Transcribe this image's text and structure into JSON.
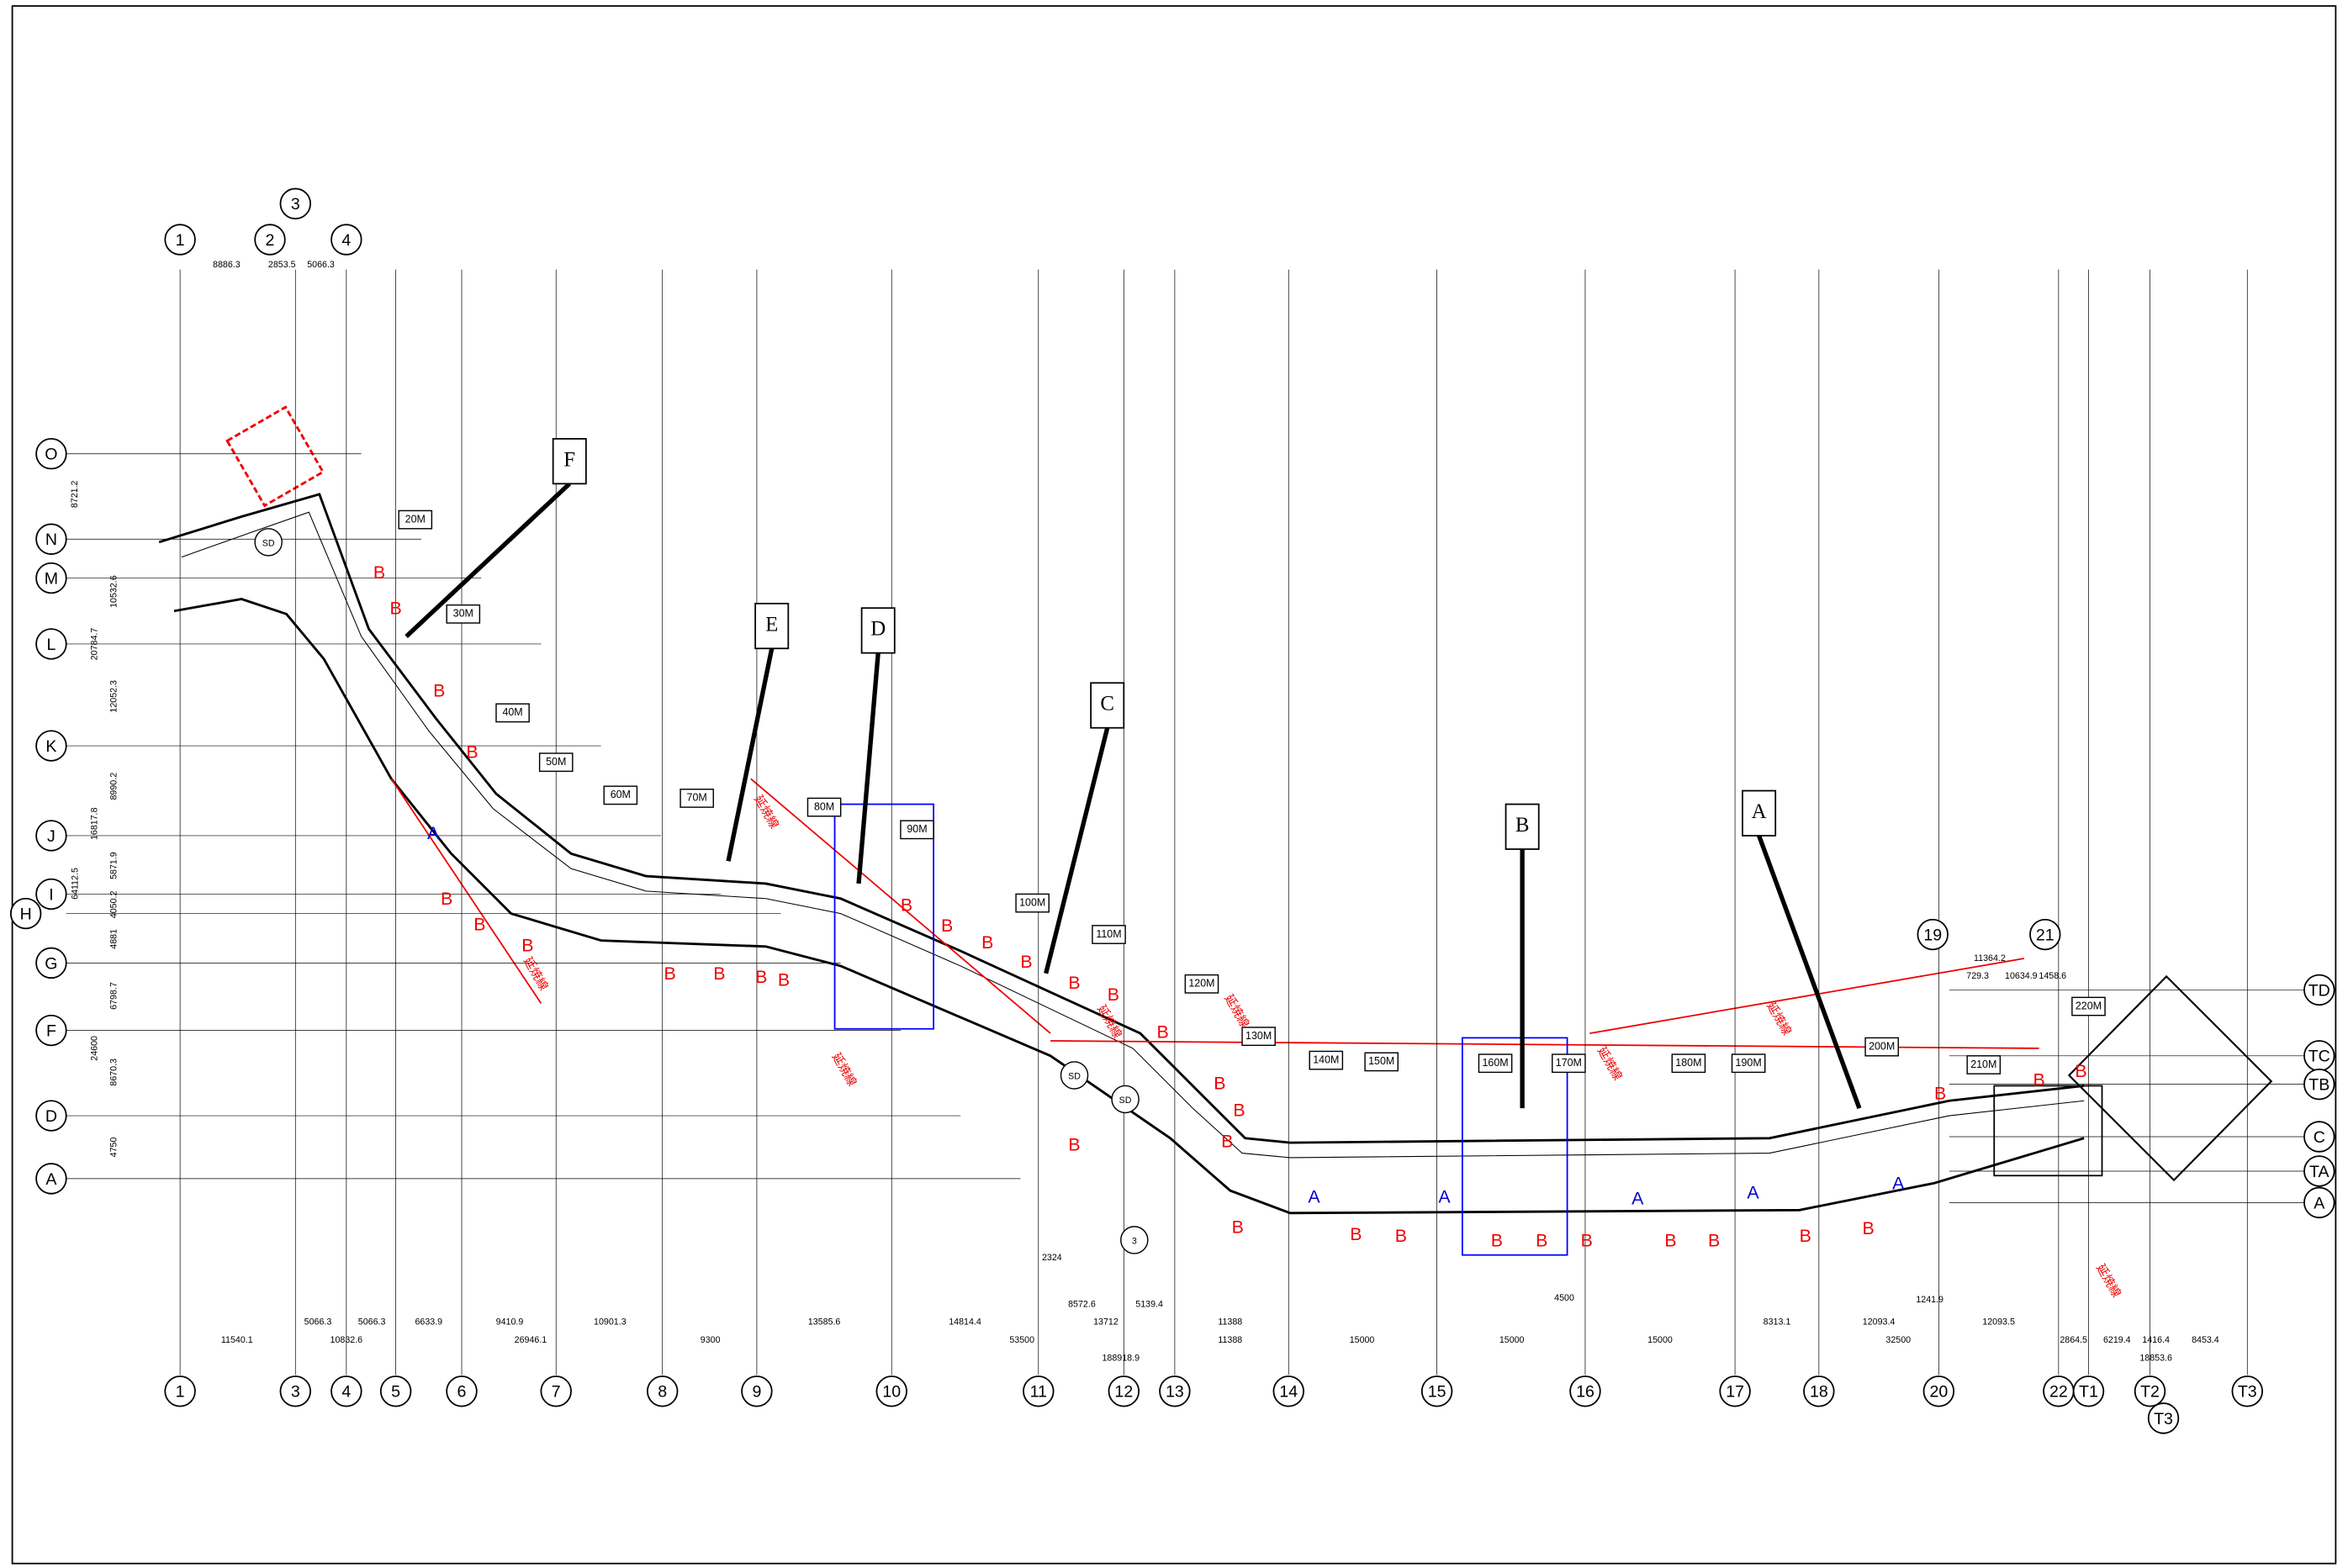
{
  "grid_columns_bottom": [
    "1",
    "3",
    "4",
    "5",
    "6",
    "7",
    "8",
    "9",
    "10",
    "11",
    "12",
    "13",
    "14",
    "15",
    "16",
    "17",
    "18",
    "20",
    "22",
    "T1",
    "T2",
    "T3",
    "T3"
  ],
  "grid_columns_top": [
    "1",
    "2",
    "3",
    "4",
    "19",
    "21"
  ],
  "grid_rows_left": [
    "O",
    "N",
    "M",
    "L",
    "K",
    "J",
    "I",
    "H",
    "G",
    "F",
    "D",
    "A"
  ],
  "grid_rows_right": [
    "TD",
    "TC",
    "TB",
    "C",
    "TA",
    "A"
  ],
  "callouts": [
    "F",
    "E",
    "D",
    "C",
    "B",
    "A"
  ],
  "distance_markers": [
    "20M",
    "30M",
    "40M",
    "50M",
    "60M",
    "70M",
    "80M",
    "90M",
    "100M",
    "110M",
    "120M",
    "130M",
    "140M",
    "150M",
    "160M",
    "170M",
    "180M",
    "190M",
    "200M",
    "210M",
    "220M"
  ],
  "dimensions_bottom": [
    "5066.3",
    "5066.3",
    "6633.9",
    "9410.9",
    "10901.3",
    "13585.6",
    "14814.4",
    "8572.6",
    "5139.4",
    "8313.1",
    "12093.4",
    "12093.5",
    "1241.9",
    "4500",
    "11388",
    "2324"
  ],
  "dimensions_row2": [
    "11540.1",
    "10832.6",
    "26946.1",
    "9300",
    "53500",
    "13712",
    "11388",
    "15000",
    "15000",
    "15000",
    "32500",
    "2864.5",
    "6219.4",
    "1416.4",
    "8453.4"
  ],
  "dimensions_total": [
    "188918.9",
    "18853.6"
  ],
  "dimensions_top": [
    "8886.3",
    "2853.5",
    "5066.3",
    "11364.2",
    "729.3",
    "10634.9",
    "1458.6"
  ],
  "dimensions_left": [
    "8721.2",
    "10532.6",
    "20784.7",
    "12052.3",
    "8990.2",
    "16817.8",
    "64112.5",
    "5871.9",
    "4050.2",
    "4881",
    "6798.7",
    "24600",
    "8670.3",
    "4750"
  ],
  "annotations": [
    "延焼線",
    "延焼線",
    "延焼線",
    "延焼線",
    "延焼線",
    "延焼線",
    "延焼線",
    "延焼線"
  ],
  "section_marks_b": [
    "B",
    "B",
    "B",
    "B",
    "B",
    "B",
    "B",
    "B",
    "B",
    "B",
    "B",
    "B",
    "B",
    "B",
    "B",
    "B",
    "B",
    "B",
    "B",
    "B",
    "B",
    "B",
    "B",
    "B",
    "B",
    "B",
    "B",
    "B",
    "B",
    "B",
    "B",
    "B",
    "B",
    "B",
    "B"
  ],
  "section_marks_a": [
    "A",
    "A",
    "A",
    "A",
    "A",
    "A"
  ],
  "station_marks": [
    "SD",
    "SD",
    "SD",
    "3"
  ]
}
